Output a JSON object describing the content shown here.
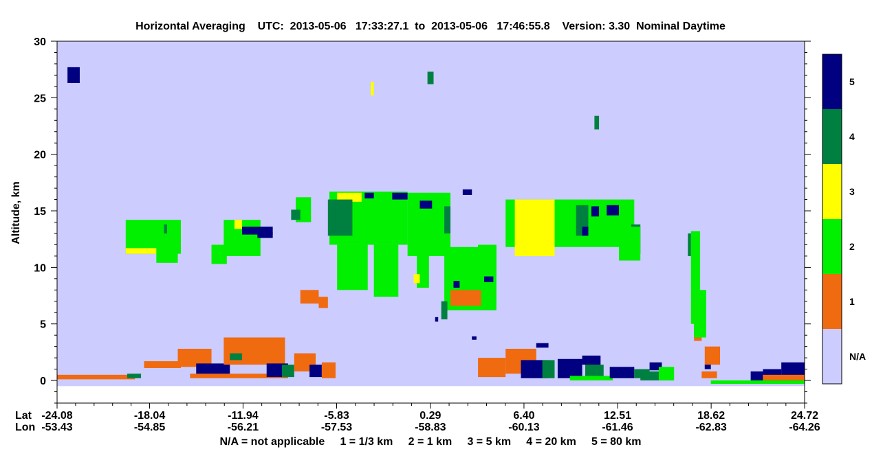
{
  "chart_data": {
    "type": "heatmap",
    "title": "Horizontal Averaging    UTC:  2013-05-06   17:33:27.1  to  2013-05-06   17:46:55.8    Version: 3.30  Nominal Daytime",
    "ylabel": "Altitude, km",
    "ylim": [
      -2,
      30
    ],
    "y_ticks": [
      0,
      5,
      10,
      15,
      20,
      25,
      30
    ],
    "x_labels": {
      "lat_label": "Lat",
      "lon_label": "Lon",
      "lat": [
        "-24.08",
        "-18.04",
        "-11.94",
        "-5.83",
        "0.29",
        "6.40",
        "12.51",
        "18.62",
        "24.72"
      ],
      "lon": [
        "-53.43",
        "-54.85",
        "-56.21",
        "-57.53",
        "-58.83",
        "-60.13",
        "-61.46",
        "-62.83",
        "-64.26"
      ]
    },
    "footer": "N/A = not applicable     1 = 1/3 km     2 = 1 km     3 = 5 km     4 = 20 km     5 = 80 km",
    "colorbar": [
      {
        "label": "5",
        "color": "#000080"
      },
      {
        "label": "4",
        "color": "#008040"
      },
      {
        "label": "3",
        "color": "#ffff00"
      },
      {
        "label": "2",
        "color": "#00f000"
      },
      {
        "label": "1",
        "color": "#f06a10"
      },
      {
        "label": "N/A",
        "color": "#ccccff"
      }
    ],
    "background_color": "#ccccff",
    "features": [
      {
        "cat": 5,
        "lat": [
          -23.4,
          -22.6
        ],
        "alt": [
          26.3,
          27.7
        ]
      },
      {
        "cat": 3,
        "lat": [
          -3.6,
          -3.4
        ],
        "alt": [
          25.2,
          26.4
        ]
      },
      {
        "cat": 4,
        "lat": [
          0.1,
          0.5
        ],
        "alt": [
          26.2,
          27.3
        ]
      },
      {
        "cat": 4,
        "lat": [
          11.0,
          11.3
        ],
        "alt": [
          22.2,
          23.4
        ]
      },
      {
        "cat": 2,
        "lat": [
          -19.6,
          -16.0
        ],
        "alt": [
          11.2,
          14.2
        ]
      },
      {
        "cat": 3,
        "lat": [
          -19.6,
          -17.5
        ],
        "alt": [
          11.2,
          11.7
        ]
      },
      {
        "cat": 4,
        "lat": [
          -17.1,
          -16.9
        ],
        "alt": [
          13.0,
          13.8
        ]
      },
      {
        "cat": 2,
        "lat": [
          -17.6,
          -16.2
        ],
        "alt": [
          10.4,
          12.0
        ]
      },
      {
        "cat": 2,
        "lat": [
          -13.2,
          -10.8
        ],
        "alt": [
          11.0,
          14.2
        ]
      },
      {
        "cat": 3,
        "lat": [
          -12.5,
          -12.0
        ],
        "alt": [
          13.4,
          14.2
        ]
      },
      {
        "cat": 5,
        "lat": [
          -12.0,
          -10.0
        ],
        "alt": [
          12.9,
          13.6
        ]
      },
      {
        "cat": 5,
        "lat": [
          -11.0,
          -10.0
        ],
        "alt": [
          12.6,
          13.1
        ]
      },
      {
        "cat": 2,
        "lat": [
          -14.0,
          -13.0
        ],
        "alt": [
          10.3,
          12.0
        ]
      },
      {
        "cat": 2,
        "lat": [
          -8.5,
          -7.5
        ],
        "alt": [
          14.0,
          16.2
        ]
      },
      {
        "cat": 4,
        "lat": [
          -8.8,
          -8.2
        ],
        "alt": [
          14.2,
          15.1
        ]
      },
      {
        "cat": 2,
        "lat": [
          -6.3,
          -1.2
        ],
        "alt": [
          12.0,
          16.7
        ]
      },
      {
        "cat": 3,
        "lat": [
          -5.8,
          -4.2
        ],
        "alt": [
          15.8,
          16.6
        ]
      },
      {
        "cat": 4,
        "lat": [
          -6.4,
          -4.8
        ],
        "alt": [
          12.8,
          16.0
        ]
      },
      {
        "cat": 5,
        "lat": [
          -4.0,
          -3.4
        ],
        "alt": [
          16.1,
          16.6
        ]
      },
      {
        "cat": 2,
        "lat": [
          -5.8,
          -3.8
        ],
        "alt": [
          8.0,
          12.0
        ]
      },
      {
        "cat": 2,
        "lat": [
          -3.4,
          -1.8
        ],
        "alt": [
          7.4,
          12.0
        ]
      },
      {
        "cat": 2,
        "lat": [
          -1.2,
          1.6
        ],
        "alt": [
          11.0,
          16.6
        ]
      },
      {
        "cat": 5,
        "lat": [
          -2.2,
          -1.2
        ],
        "alt": [
          16.0,
          16.6
        ]
      },
      {
        "cat": 5,
        "lat": [
          -0.4,
          0.4
        ],
        "alt": [
          15.2,
          15.9
        ]
      },
      {
        "cat": 4,
        "lat": [
          1.2,
          1.6
        ],
        "alt": [
          13.0,
          15.4
        ]
      },
      {
        "cat": 2,
        "lat": [
          -0.6,
          0.2
        ],
        "alt": [
          8.2,
          11.6
        ]
      },
      {
        "cat": 3,
        "lat": [
          -0.8,
          -0.4
        ],
        "alt": [
          8.6,
          9.4
        ]
      },
      {
        "cat": 2,
        "lat": [
          1.2,
          4.6
        ],
        "alt": [
          6.2,
          11.8
        ]
      },
      {
        "cat": 5,
        "lat": [
          2.4,
          3.0
        ],
        "alt": [
          16.4,
          16.9
        ]
      },
      {
        "cat": 1,
        "lat": [
          1.6,
          3.6
        ],
        "alt": [
          6.6,
          8.0
        ]
      },
      {
        "cat": 5,
        "lat": [
          1.8,
          2.2
        ],
        "alt": [
          8.2,
          8.8
        ]
      },
      {
        "cat": 5,
        "lat": [
          3.8,
          4.4
        ],
        "alt": [
          8.7,
          9.4
        ]
      },
      {
        "cat": 2,
        "lat": [
          3.4,
          4.6
        ],
        "alt": [
          9.2,
          12.0
        ]
      },
      {
        "cat": 5,
        "lat": [
          3.0,
          3.3
        ],
        "alt": [
          3.6,
          3.9
        ]
      },
      {
        "cat": 5,
        "lat": [
          0.6,
          0.8
        ],
        "alt": [
          5.2,
          5.6
        ]
      },
      {
        "cat": 2,
        "lat": [
          5.2,
          13.6
        ],
        "alt": [
          11.8,
          16.0
        ]
      },
      {
        "cat": 3,
        "lat": [
          5.8,
          8.4
        ],
        "alt": [
          11.0,
          16.0
        ]
      },
      {
        "cat": 4,
        "lat": [
          9.8,
          10.6
        ],
        "alt": [
          12.8,
          15.5
        ]
      },
      {
        "cat": 5,
        "lat": [
          10.2,
          10.6
        ],
        "alt": [
          12.8,
          13.6
        ]
      },
      {
        "cat": 5,
        "lat": [
          10.8,
          11.3
        ],
        "alt": [
          14.5,
          15.4
        ]
      },
      {
        "cat": 5,
        "lat": [
          11.8,
          12.6
        ],
        "alt": [
          14.6,
          15.5
        ]
      },
      {
        "cat": 4,
        "lat": [
          13.4,
          14.0
        ],
        "alt": [
          11.2,
          13.8
        ]
      },
      {
        "cat": 2,
        "lat": [
          12.6,
          14.0
        ],
        "alt": [
          10.6,
          13.6
        ]
      },
      {
        "cat": 2,
        "lat": [
          17.3,
          17.9
        ],
        "alt": [
          5.0,
          13.2
        ]
      },
      {
        "cat": 1,
        "lat": [
          17.5,
          18.0
        ],
        "alt": [
          3.5,
          7.8
        ]
      },
      {
        "cat": 2,
        "lat": [
          17.5,
          18.3
        ],
        "alt": [
          3.8,
          8.0
        ]
      },
      {
        "cat": 4,
        "lat": [
          17.1,
          17.3
        ],
        "alt": [
          11.0,
          13.0
        ]
      },
      {
        "cat": 1,
        "lat": [
          -8.2,
          -7.0
        ],
        "alt": [
          6.8,
          8.0
        ]
      },
      {
        "cat": 1,
        "lat": [
          -7.0,
          -6.4
        ],
        "alt": [
          6.4,
          7.4
        ]
      },
      {
        "cat": 4,
        "lat": [
          1.0,
          1.4
        ],
        "alt": [
          5.4,
          7.0
        ]
      },
      {
        "cat": 1,
        "lat": [
          -24.08,
          -19.0
        ],
        "alt": [
          0.1,
          0.5
        ]
      },
      {
        "cat": 4,
        "lat": [
          -19.5,
          -18.6
        ],
        "alt": [
          0.2,
          0.6
        ]
      },
      {
        "cat": 1,
        "lat": [
          -18.4,
          -16.0
        ],
        "alt": [
          1.1,
          1.7
        ]
      },
      {
        "cat": 1,
        "lat": [
          -16.2,
          -14.0
        ],
        "alt": [
          1.2,
          2.8
        ]
      },
      {
        "cat": 5,
        "lat": [
          -15.0,
          -12.8
        ],
        "alt": [
          0.5,
          1.5
        ]
      },
      {
        "cat": 1,
        "lat": [
          -13.2,
          -9.2
        ],
        "alt": [
          1.4,
          3.8
        ]
      },
      {
        "cat": 4,
        "lat": [
          -12.8,
          -12.0
        ],
        "alt": [
          1.8,
          2.4
        ]
      },
      {
        "cat": 1,
        "lat": [
          -15.4,
          -9.0
        ],
        "alt": [
          0.2,
          0.6
        ]
      },
      {
        "cat": 5,
        "lat": [
          -10.4,
          -9.0
        ],
        "alt": [
          0.3,
          1.5
        ]
      },
      {
        "cat": 4,
        "lat": [
          -9.4,
          -8.6
        ],
        "alt": [
          0.3,
          1.4
        ]
      },
      {
        "cat": 1,
        "lat": [
          -8.6,
          -7.2
        ],
        "alt": [
          0.8,
          2.4
        ]
      },
      {
        "cat": 5,
        "lat": [
          -7.6,
          -6.8
        ],
        "alt": [
          0.3,
          1.4
        ]
      },
      {
        "cat": 1,
        "lat": [
          -6.8,
          -5.9
        ],
        "alt": [
          0.2,
          1.6
        ]
      },
      {
        "cat": 1,
        "lat": [
          3.4,
          5.2
        ],
        "alt": [
          0.3,
          2.0
        ]
      },
      {
        "cat": 1,
        "lat": [
          5.2,
          7.2
        ],
        "alt": [
          0.6,
          2.8
        ]
      },
      {
        "cat": 5,
        "lat": [
          6.2,
          8.0
        ],
        "alt": [
          0.2,
          1.8
        ]
      },
      {
        "cat": 4,
        "lat": [
          7.6,
          8.4
        ],
        "alt": [
          0.2,
          1.8
        ]
      },
      {
        "cat": 5,
        "lat": [
          7.2,
          8.0
        ],
        "alt": [
          2.9,
          3.3
        ]
      },
      {
        "cat": 5,
        "lat": [
          8.6,
          10.2
        ],
        "alt": [
          0.2,
          1.9
        ]
      },
      {
        "cat": 5,
        "lat": [
          10.2,
          11.4
        ],
        "alt": [
          1.4,
          2.2
        ]
      },
      {
        "cat": 4,
        "lat": [
          10.4,
          11.6
        ],
        "alt": [
          0.2,
          1.4
        ]
      },
      {
        "cat": 2,
        "lat": [
          9.4,
          12.2
        ],
        "alt": [
          0.0,
          0.4
        ]
      },
      {
        "cat": 5,
        "lat": [
          12.0,
          13.6
        ],
        "alt": [
          0.2,
          1.2
        ]
      },
      {
        "cat": 4,
        "lat": [
          13.6,
          14.6
        ],
        "alt": [
          0.2,
          1.0
        ]
      },
      {
        "cat": 5,
        "lat": [
          14.6,
          15.4
        ],
        "alt": [
          0.9,
          1.6
        ]
      },
      {
        "cat": 4,
        "lat": [
          14.0,
          16.0
        ],
        "alt": [
          0.0,
          0.8
        ]
      },
      {
        "cat": 2,
        "lat": [
          15.2,
          16.2
        ],
        "alt": [
          0.0,
          1.2
        ]
      },
      {
        "cat": 1,
        "lat": [
          18.2,
          19.2
        ],
        "alt": [
          1.4,
          3.0
        ]
      },
      {
        "cat": 5,
        "lat": [
          18.2,
          18.6
        ],
        "alt": [
          1.0,
          1.4
        ]
      },
      {
        "cat": 1,
        "lat": [
          18.0,
          19.0
        ],
        "alt": [
          0.2,
          0.8
        ]
      },
      {
        "cat": 2,
        "lat": [
          18.6,
          24.72
        ],
        "alt": [
          -0.3,
          0.0
        ]
      },
      {
        "cat": 5,
        "lat": [
          21.2,
          22.0
        ],
        "alt": [
          0.0,
          0.8
        ]
      },
      {
        "cat": 5,
        "lat": [
          22.0,
          23.2
        ],
        "alt": [
          0.0,
          1.0
        ]
      },
      {
        "cat": 5,
        "lat": [
          23.2,
          24.72
        ],
        "alt": [
          0.0,
          1.6
        ]
      },
      {
        "cat": 1,
        "lat": [
          22.0,
          24.72
        ],
        "alt": [
          0.0,
          0.5
        ]
      }
    ]
  }
}
